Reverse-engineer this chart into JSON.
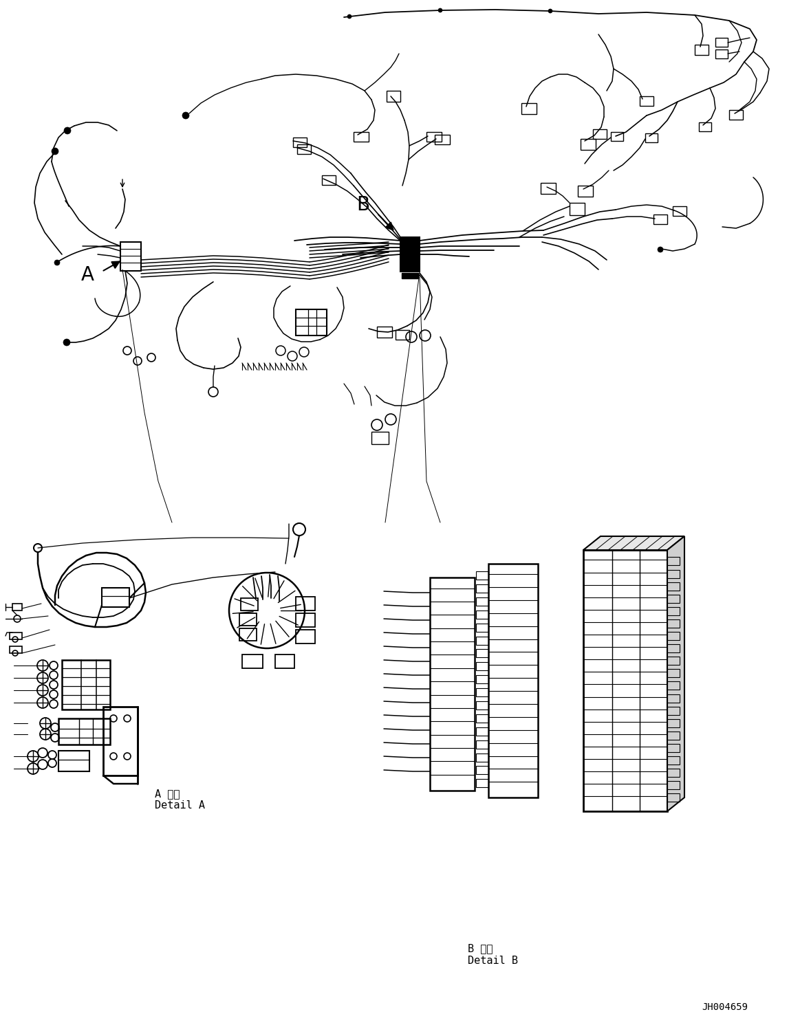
{
  "figure_width": 11.63,
  "figure_height": 14.88,
  "dpi": 100,
  "bg": "#ffffff",
  "lc": "#000000",
  "detail_A_jp": "A 詳細",
  "detail_A_en": "Detail A",
  "detail_B_jp": "B 詳細",
  "detail_B_en": "Detail B",
  "part_number": "JH004659",
  "label_A": "A",
  "label_B": "B"
}
